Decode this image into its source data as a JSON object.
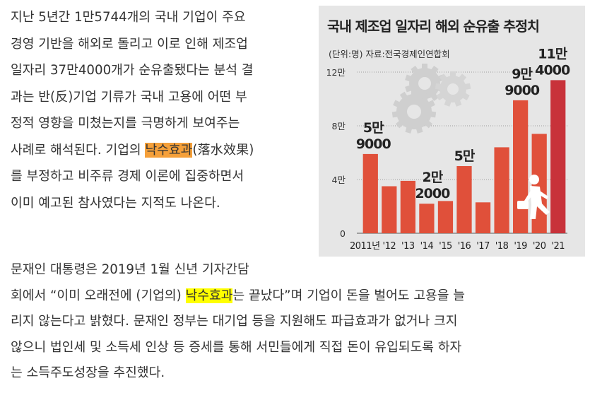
{
  "article": {
    "para1": [
      "지난 5년간 1만5744개의 국내 기업이 주요",
      "경영 기반을 해외로 돌리고 이로 인해 제조업",
      "일자리 37만4000개가 순유출됐다는 분석 결",
      "과는 반(反)기업 기류가 국내 고용에 어떤 부",
      "정적 영향을 미쳤는지를 극명하게 보여주는",
      {
        "before": "사례로 해석된다. 기업의 ",
        "highlight": "낙수효과",
        "after": "(落水效果)"
      },
      "를 부정하고 비주류 경제 이론에 집중하면서",
      "이미 예고된 참사였다는 지적도 나온다."
    ],
    "para2": [
      "문재인 대통령은 2019년 1월 신년 기자간담",
      {
        "before": "회에서 “이미 오래전에 (기업의) ",
        "highlight": "낙수효과",
        "after": "는 끝났다”며 기업이 돈을 벌어도 고용을 늘"
      },
      "리지 않는다고 밝혔다. 문재인 정부는 대기업 등을 지원해도 파급효과가 없거나 크지",
      "않으니 법인세 및 소득세 인상 등 증세를 통해 서민들에게 직접 돈이 유입되도록 하자",
      "는 소득주도성장을 추진했다."
    ]
  },
  "figure": {
    "title": "국내 제조업 일자리 해외 순유출 추정치",
    "subtitle": "(단위:명)  자료:전국경제인연합회",
    "colors": {
      "bar": "#e0503a",
      "bar_last": "#c8323a",
      "grid": "#888888"
    },
    "icons": [
      "gear-icon",
      "walking-man-icon"
    ]
  },
  "chart_data": {
    "type": "bar",
    "title": "국내 제조업 일자리 해외 순유출 추정치",
    "unit": "(단위:명)",
    "source": "자료:전국경제인연합회",
    "categories": [
      "2011년",
      "'12",
      "'13",
      "'14",
      "'15",
      "'16",
      "'17",
      "'18",
      "'19",
      "'20",
      "'21"
    ],
    "values": [
      59000,
      35000,
      39000,
      22000,
      24000,
      50000,
      23000,
      64000,
      99000,
      74000,
      114000
    ],
    "y_ticks": [
      {
        "value": 0,
        "label": "0"
      },
      {
        "value": 40000,
        "label": "4만"
      },
      {
        "value": 80000,
        "label": "8만"
      },
      {
        "value": 120000,
        "label": "12만"
      }
    ],
    "ylim": [
      0,
      120000
    ],
    "data_labels": [
      {
        "index": 0,
        "lines": [
          "5만",
          "9000"
        ]
      },
      {
        "index": 3,
        "lines": [
          "2만",
          "2000"
        ]
      },
      {
        "index": 5,
        "lines": [
          "5만"
        ]
      },
      {
        "index": 8,
        "lines": [
          "9만",
          "9000"
        ]
      },
      {
        "index": 10,
        "lines": [
          "11만",
          "4000"
        ]
      }
    ],
    "grid": true,
    "legend": "none"
  }
}
